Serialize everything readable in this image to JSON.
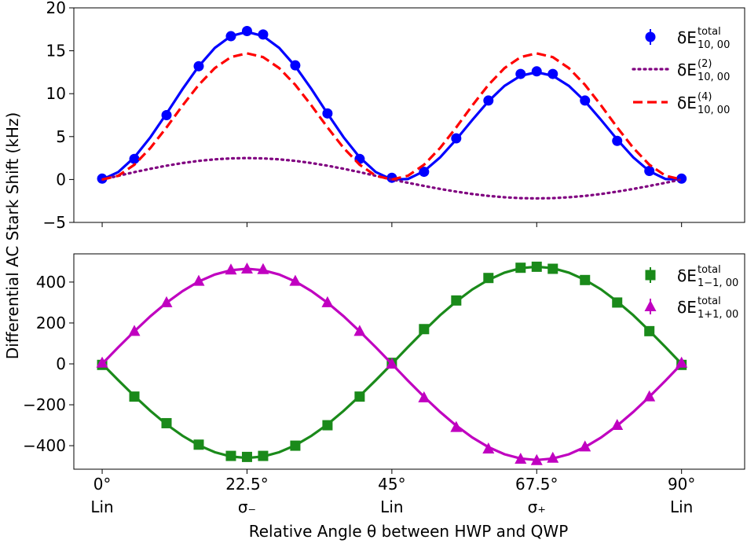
{
  "chart_data": [
    {
      "type": "scatter",
      "ylabel": "Differential AC Stark Shift (kHz)",
      "xlim": [
        -4.4,
        99.8
      ],
      "xticks": [
        0,
        22.5,
        45,
        67.5,
        90
      ],
      "ylim": [
        -5,
        20
      ],
      "yticks": [
        {
          "value": -5,
          "label": "−5"
        },
        0,
        5,
        10,
        15,
        20
      ],
      "series": [
        {
          "name": "δE",
          "sup": "total",
          "sub": "10, 00",
          "color": "#0000ff",
          "marker": "circle",
          "line": "solid",
          "x": [
            0,
            5,
            10,
            15,
            20,
            22.5,
            25,
            30,
            35,
            40,
            45,
            50,
            55,
            60,
            65,
            67.5,
            70,
            75,
            80,
            85,
            90
          ],
          "values": [
            0.1,
            2.4,
            7.5,
            13.2,
            16.7,
            17.3,
            16.9,
            13.3,
            7.7,
            2.4,
            0.2,
            0.9,
            4.8,
            9.2,
            12.3,
            12.6,
            12.3,
            9.2,
            4.5,
            1.0,
            0.1
          ],
          "fit_x": [
            0,
            2.5,
            5,
            7.5,
            10,
            12.5,
            15,
            17.5,
            20,
            22.5,
            25,
            27.5,
            30,
            32.5,
            35,
            37.5,
            40,
            42.5,
            45,
            47.5,
            50,
            52.5,
            55,
            57.5,
            60,
            62.5,
            65,
            67.5,
            70,
            72.5,
            75,
            77.5,
            80,
            82.5,
            85,
            87.5,
            90
          ],
          "fit": [
            0,
            0.87,
            2.58,
            4.93,
            7.68,
            10.55,
            13.2,
            15.33,
            16.72,
            17.2,
            16.72,
            15.33,
            13.2,
            10.55,
            7.68,
            4.93,
            2.58,
            0.87,
            0,
            0.06,
            0.97,
            2.58,
            4.66,
            6.94,
            9.12,
            10.91,
            12.09,
            12.5,
            12.09,
            10.91,
            9.12,
            6.94,
            4.66,
            2.58,
            0.97,
            0.06,
            0
          ]
        },
        {
          "name": "δE",
          "sup": "(2)",
          "sub": "10, 00",
          "color": "#800080",
          "line": "dotted",
          "fit_x": [
            0,
            2.5,
            5,
            7.5,
            10,
            12.5,
            15,
            17.5,
            20,
            22.5,
            25,
            27.5,
            30,
            32.5,
            35,
            37.5,
            40,
            42.5,
            45,
            47.5,
            50,
            52.5,
            55,
            57.5,
            60,
            62.5,
            65,
            67.5,
            70,
            72.5,
            75,
            77.5,
            80,
            82.5,
            85,
            87.5,
            90
          ],
          "fit": [
            0,
            0.43,
            0.86,
            1.25,
            1.61,
            1.92,
            2.17,
            2.35,
            2.46,
            2.5,
            2.46,
            2.35,
            2.17,
            1.92,
            1.61,
            1.25,
            0.86,
            0.43,
            0,
            -0.38,
            -0.75,
            -1.1,
            -1.41,
            -1.69,
            -1.91,
            -2.07,
            -2.17,
            -2.2,
            -2.17,
            -2.07,
            -1.91,
            -1.69,
            -1.41,
            -1.1,
            -0.75,
            -0.38,
            0
          ]
        },
        {
          "name": "δE",
          "sup": "(4)",
          "sub": "10, 00",
          "color": "#ff0000",
          "line": "dashed",
          "fit_x": [
            0,
            2.5,
            5,
            7.5,
            10,
            12.5,
            15,
            17.5,
            20,
            22.5,
            25,
            27.5,
            30,
            32.5,
            35,
            37.5,
            40,
            42.5,
            45,
            47.5,
            50,
            52.5,
            55,
            57.5,
            60,
            62.5,
            65,
            67.5,
            70,
            72.5,
            75,
            77.5,
            80,
            82.5,
            85,
            87.5,
            90
          ],
          "fit": [
            0,
            0.44,
            1.72,
            3.68,
            6.07,
            8.63,
            11.03,
            12.98,
            14.26,
            14.7,
            14.26,
            12.98,
            11.03,
            8.63,
            6.07,
            3.68,
            1.72,
            0.44,
            0,
            0.44,
            1.72,
            3.68,
            6.07,
            8.63,
            11.03,
            12.98,
            14.26,
            14.7,
            14.26,
            12.98,
            11.03,
            8.63,
            6.07,
            3.68,
            1.72,
            0.44,
            0
          ]
        }
      ]
    },
    {
      "type": "scatter",
      "xlabel": "Relative Angle θ between HWP and QWP",
      "xlim": [
        -4.4,
        99.8
      ],
      "xticks": [
        {
          "value": 0,
          "label": "0°"
        },
        {
          "value": 22.5,
          "label": "22.5°"
        },
        {
          "value": 45,
          "label": "45°"
        },
        {
          "value": 67.5,
          "label": "67.5°"
        },
        {
          "value": 90,
          "label": "90°"
        }
      ],
      "xtick_sublabels": [
        "Lin",
        "σ₋",
        "Lin",
        "σ₊",
        "Lin"
      ],
      "ylim": [
        -515,
        538
      ],
      "yticks": [
        {
          "value": -400,
          "label": "−400"
        },
        {
          "value": -200,
          "label": "−200"
        },
        0,
        200,
        400
      ],
      "series": [
        {
          "name": "δE",
          "sup": "total",
          "sub": "1−1, 00",
          "color": "#1a8a1a",
          "marker": "square",
          "line": "solid",
          "x": [
            0,
            5,
            10,
            15,
            20,
            22.5,
            25,
            30,
            35,
            40,
            45,
            50,
            55,
            60,
            65,
            67.5,
            70,
            75,
            80,
            85,
            90
          ],
          "values": [
            -5,
            -160,
            -290,
            -395,
            -450,
            -455,
            -450,
            -400,
            -300,
            -160,
            5,
            170,
            310,
            420,
            470,
            475,
            465,
            410,
            300,
            160,
            -5
          ],
          "fit_x": [
            0,
            2.5,
            5,
            7.5,
            10,
            12.5,
            15,
            17.5,
            20,
            22.5,
            25,
            27.5,
            30,
            32.5,
            35,
            37.5,
            40,
            42.5,
            45,
            47.5,
            50,
            52.5,
            55,
            57.5,
            60,
            62.5,
            65,
            67.5,
            70,
            72.5,
            75,
            77.5,
            80,
            82.5,
            85,
            87.5,
            90
          ],
          "fit": [
            0,
            -80,
            -157,
            -230,
            -296,
            -352,
            -398,
            -432,
            -453,
            -460,
            -453,
            -432,
            -398,
            -352,
            -296,
            -230,
            -157,
            -80,
            0,
            82,
            162,
            238,
            305,
            364,
            411,
            446,
            468,
            475,
            468,
            446,
            411,
            364,
            305,
            238,
            162,
            82,
            0
          ]
        },
        {
          "name": "δE",
          "sup": "total",
          "sub": "1+1, 00",
          "color": "#c000c0",
          "marker": "triangle",
          "line": "solid",
          "x": [
            0,
            5,
            10,
            15,
            20,
            22.5,
            25,
            30,
            35,
            40,
            45,
            50,
            55,
            60,
            65,
            67.5,
            70,
            75,
            80,
            85,
            90
          ],
          "values": [
            5,
            160,
            300,
            405,
            460,
            465,
            462,
            405,
            300,
            160,
            0,
            -165,
            -310,
            -415,
            -465,
            -472,
            -460,
            -405,
            -300,
            -160,
            5
          ],
          "fit_x": [
            0,
            2.5,
            5,
            7.5,
            10,
            12.5,
            15,
            17.5,
            20,
            22.5,
            25,
            27.5,
            30,
            32.5,
            35,
            37.5,
            40,
            42.5,
            45,
            47.5,
            50,
            52.5,
            55,
            57.5,
            60,
            62.5,
            65,
            67.5,
            70,
            72.5,
            75,
            77.5,
            80,
            82.5,
            85,
            87.5,
            90
          ],
          "fit": [
            0,
            81,
            159,
            233,
            299,
            356,
            403,
            437,
            458,
            465,
            458,
            437,
            403,
            356,
            299,
            233,
            159,
            81,
            0,
            -82,
            -161,
            -235,
            -302,
            -360,
            -407,
            -442,
            -463,
            -470,
            -463,
            -442,
            -407,
            -360,
            -302,
            -235,
            -161,
            -82,
            0
          ]
        }
      ]
    }
  ]
}
